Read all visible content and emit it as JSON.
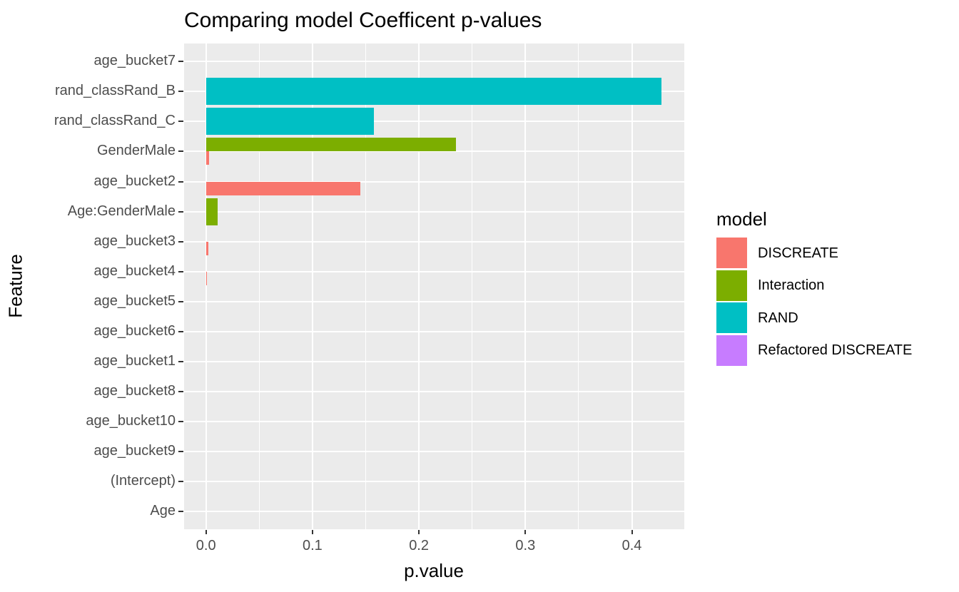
{
  "title": "Comparing model Coefficent p-values",
  "x_axis": {
    "label": "p.value",
    "ticks": [
      0.0,
      0.1,
      0.2,
      0.3,
      0.4
    ],
    "tick_labels": [
      "0.0",
      "0.1",
      "0.2",
      "0.3",
      "0.4"
    ],
    "minor_ticks": [
      0.05,
      0.15,
      0.25,
      0.35
    ]
  },
  "y_axis": {
    "label": "Feature",
    "categories_top_to_bottom": [
      "age_bucket7",
      "rand_classRand_B",
      "rand_classRand_C",
      "GenderMale",
      "age_bucket2",
      "Age:GenderMale",
      "age_bucket3",
      "age_bucket4",
      "age_bucket5",
      "age_bucket6",
      "age_bucket1",
      "age_bucket8",
      "age_bucket10",
      "age_bucket9",
      "(Intercept)",
      "Age"
    ]
  },
  "legend": {
    "title": "model",
    "items": [
      {
        "label": "DISCREATE",
        "color": "#F8766D"
      },
      {
        "label": "Interaction",
        "color": "#7CAE00"
      },
      {
        "label": "RAND",
        "color": "#00BFC4"
      },
      {
        "label": "Refactored DISCREATE",
        "color": "#C77CFF"
      }
    ]
  },
  "colors": {
    "panel_background": "#EBEBEB",
    "grid": "#FFFFFF",
    "tick_mark": "#333333",
    "tick_text": "#4D4D4D",
    "text": "#000000"
  },
  "bars": [
    {
      "feature": "rand_classRand_B",
      "model": "RAND",
      "value": 0.428,
      "slot": "full"
    },
    {
      "feature": "rand_classRand_C",
      "model": "RAND",
      "value": 0.158,
      "slot": "full"
    },
    {
      "feature": "GenderMale",
      "model": "Interaction",
      "value": 0.235,
      "slot": "top"
    },
    {
      "feature": "GenderMale",
      "model": "DISCREATE",
      "value": 0.003,
      "slot": "bottom"
    },
    {
      "feature": "age_bucket2",
      "model": "DISCREATE",
      "value": 0.145,
      "slot": "bottom"
    },
    {
      "feature": "Age:GenderMale",
      "model": "Interaction",
      "value": 0.011,
      "slot": "full"
    },
    {
      "feature": "age_bucket3",
      "model": "DISCREATE",
      "value": 0.0025,
      "slot": "bottom"
    },
    {
      "feature": "age_bucket4",
      "model": "DISCREATE",
      "value": 0.0006,
      "slot": "bottom"
    }
  ],
  "chart_data": {
    "type": "bar",
    "orientation": "horizontal",
    "title": "Comparing model Coefficent p-values",
    "xlabel": "p.value",
    "ylabel": "Feature",
    "xlim": [
      0,
      0.45
    ],
    "x_ticks": [
      0.0,
      0.1,
      0.2,
      0.3,
      0.4
    ],
    "grid": true,
    "legend_position": "right",
    "legend_title": "model",
    "categories_top_to_bottom": [
      "age_bucket7",
      "rand_classRand_B",
      "rand_classRand_C",
      "GenderMale",
      "age_bucket2",
      "Age:GenderMale",
      "age_bucket3",
      "age_bucket4",
      "age_bucket5",
      "age_bucket6",
      "age_bucket1",
      "age_bucket8",
      "age_bucket10",
      "age_bucket9",
      "(Intercept)",
      "Age"
    ],
    "series": [
      {
        "name": "DISCREATE",
        "color": "#F8766D",
        "points": {
          "GenderMale": 0.003,
          "age_bucket2": 0.145,
          "age_bucket3": 0.0025,
          "age_bucket4": 0.0006
        }
      },
      {
        "name": "Interaction",
        "color": "#7CAE00",
        "points": {
          "GenderMale": 0.235,
          "Age:GenderMale": 0.011
        }
      },
      {
        "name": "RAND",
        "color": "#00BFC4",
        "points": {
          "rand_classRand_B": 0.428,
          "rand_classRand_C": 0.158
        }
      },
      {
        "name": "Refactored DISCREATE",
        "color": "#C77CFF",
        "points": {}
      }
    ]
  }
}
